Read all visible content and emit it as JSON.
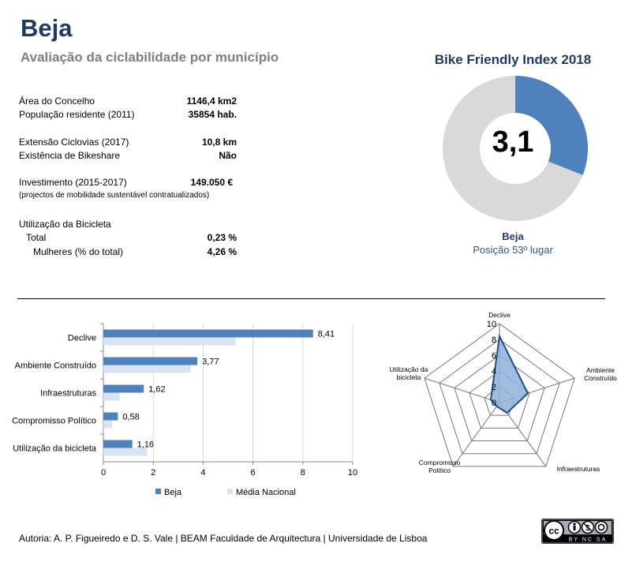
{
  "header": {
    "title": "Beja",
    "subtitle": "Avaliação da ciclabilidade por município"
  },
  "info": {
    "area": {
      "label": "Área do Concelho",
      "value": "1146,4 km2"
    },
    "population": {
      "label": "População residente (2011)",
      "value": "35854 hab."
    },
    "cycleways": {
      "label": "Extensão Ciclovias (2017)",
      "value": "10,8 km"
    },
    "bikeshare": {
      "label": "Existência de Bikeshare",
      "value": "Não"
    },
    "investment": {
      "label": "Investimento (2015-2017)",
      "value": "149.050 €"
    },
    "investment_note": "(projectos de mobilidade sustentável contratualizados)",
    "bike_use_title": "Utilização da Bicicleta",
    "bike_use_total": {
      "label": "Total",
      "value": "0,23 %"
    },
    "bike_use_women": {
      "label": "Mulheres (% do total)",
      "value": "4,26 %"
    }
  },
  "index": {
    "title": "Bike Friendly Index 2018",
    "value_label": "3,1",
    "municipality": "Beja",
    "rank_text": "Posição 53º lugar"
  },
  "footer": {
    "credits": "Autoria: A. P. Figueiredo e D. S. Vale | BEAM Faculdade de Arquitectura | Universidade de Lisboa",
    "license_badge": "cc-by-nc-sa",
    "license_text": "BY NC SA"
  },
  "colors": {
    "beja": "#4f81bd",
    "national": "#d9e4f2",
    "donut_rest": "#d9d9d9",
    "radar_fill": "#8fb0d8",
    "radar_line": "#1f4e8c"
  },
  "chart_data": [
    {
      "type": "pie",
      "title": "Bike Friendly Index 2018",
      "values": [
        3.1,
        6.9
      ],
      "center_label": "3,1"
    },
    {
      "type": "bar",
      "orientation": "horizontal",
      "categories": [
        "Declive",
        "Ambiente Construído",
        "Infraestruturas",
        "Compromisso Político",
        "Utilização da bicicleta"
      ],
      "series": [
        {
          "name": "Beja",
          "values": [
            8.41,
            3.77,
            1.62,
            0.58,
            1.16
          ],
          "labels": [
            "8,41",
            "3,77",
            "1,62",
            "0,58",
            "1,16"
          ]
        },
        {
          "name": "Média Nacional",
          "values": [
            5.3,
            3.5,
            0.65,
            0.35,
            1.75
          ]
        }
      ],
      "xlim": [
        0,
        10
      ],
      "xticks": [
        "0",
        "2",
        "4",
        "6",
        "8",
        "10"
      ],
      "grid": true,
      "legend": "bottom"
    },
    {
      "type": "radar",
      "axes": [
        "Declive",
        "Ambiente Construído",
        "Infraestruturas",
        "Compromisso Político",
        "Utilização da bicicleta"
      ],
      "axis_labels": [
        [
          "Declive"
        ],
        [
          "Ambiente",
          "Construído"
        ],
        [
          "Infraestruturas"
        ],
        [
          "Compromisso",
          "Político"
        ],
        [
          "Utilização da",
          "bicicleta"
        ]
      ],
      "values": [
        8.41,
        3.77,
        1.62,
        0.58,
        1.16
      ],
      "rmax": 10,
      "rticks": [
        "0",
        "2",
        "4",
        "6",
        "8",
        "10"
      ]
    }
  ]
}
